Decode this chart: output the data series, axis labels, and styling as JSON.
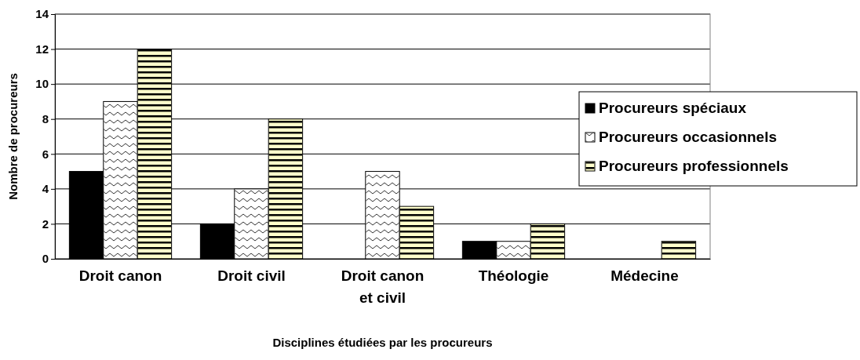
{
  "chart_data": {
    "type": "bar",
    "xlabel": "Disciplines étudiées par les procureurs",
    "ylabel": "Nombre de procureurs",
    "categories": [
      "Droit canon",
      "Droit civil",
      "Droit canon et civil",
      "Théologie",
      "Médecine"
    ],
    "series": [
      {
        "name": "Procureurs spéciaux",
        "color": "#000000",
        "values": [
          5,
          2,
          0,
          1,
          0
        ]
      },
      {
        "name": "Procureurs occasionnels",
        "color": "#ffffff",
        "values": [
          9,
          4,
          5,
          1,
          0
        ]
      },
      {
        "name": "Procureurs professionnels",
        "color": "#ffffcc",
        "values": [
          12,
          8,
          3,
          2,
          1
        ]
      }
    ],
    "ylim": [
      0,
      14
    ],
    "yticks": [
      0,
      2,
      4,
      6,
      8,
      10,
      12,
      14
    ],
    "grid": "y",
    "legend": "right"
  }
}
